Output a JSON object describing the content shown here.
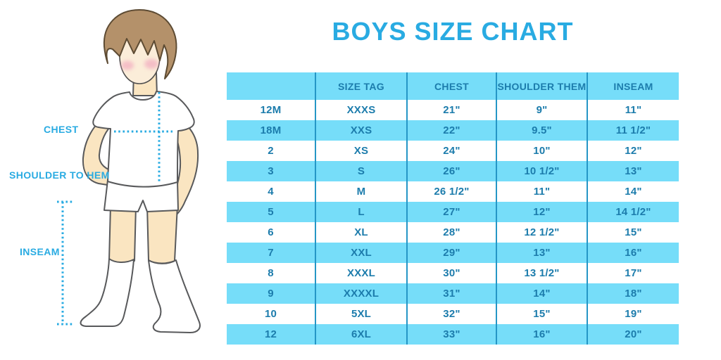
{
  "title": "BOYS SIZE CHART",
  "figure": {
    "description": "cartoon boy in white t-shirt, shorts and knee socks with dotted measurement guides",
    "labels": {
      "chest": "CHEST",
      "shoulder_to_hem": "SHOULDER TO HEM",
      "inseam": "INSEAM"
    }
  },
  "chart_data": {
    "type": "table",
    "title": "BOYS SIZE CHART",
    "columns": [
      "",
      "SIZE TAG",
      "CHEST",
      "SHOULDER THEM",
      "INSEAM"
    ],
    "rows": [
      [
        "12M",
        "XXXS",
        "21\"",
        "9\"",
        "11\""
      ],
      [
        "18M",
        "XXS",
        "22\"",
        "9.5\"",
        "11 1/2\""
      ],
      [
        "2",
        "XS",
        "24\"",
        "10\"",
        "12\""
      ],
      [
        "3",
        "S",
        "26\"",
        "10 1/2\"",
        "13\""
      ],
      [
        "4",
        "M",
        "26 1/2\"",
        "11\"",
        "14\""
      ],
      [
        "5",
        "L",
        "27\"",
        "12\"",
        "14 1/2\""
      ],
      [
        "6",
        "XL",
        "28\"",
        "12 1/2\"",
        "15\""
      ],
      [
        "7",
        "XXL",
        "29\"",
        "13\"",
        "16\""
      ],
      [
        "8",
        "XXXL",
        "30\"",
        "13 1/2\"",
        "17\""
      ],
      [
        "9",
        "XXXXL",
        "31\"",
        "14\"",
        "18\""
      ],
      [
        "10",
        "5XL",
        "32\"",
        "15\"",
        "19\""
      ],
      [
        "12",
        "6XL",
        "33\"",
        "16\"",
        "20\""
      ]
    ]
  },
  "colors": {
    "accent_blue": "#29ABE2",
    "table_row_fill": "#76DDF9",
    "table_text": "#1C7CAC",
    "table_divider": "#2596C6",
    "skin": "#FAE5C1",
    "hair": "#B4916A",
    "blush": "#F2AEC0",
    "outline": "#58595B"
  }
}
